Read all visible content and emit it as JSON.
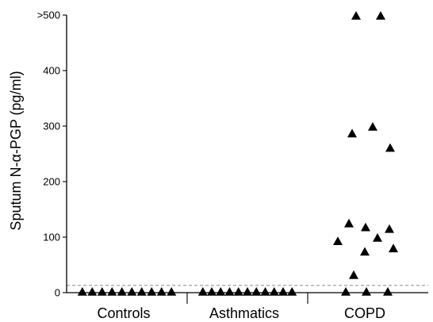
{
  "chart_data": {
    "type": "scatter",
    "title": "",
    "xlabel": "",
    "ylabel": "Sputum N-α-PGP (pg/ml)",
    "ylim": [
      0,
      500
    ],
    "yticks": [
      {
        "value": 0,
        "label": "0"
      },
      {
        "value": 100,
        "label": "100"
      },
      {
        "value": 200,
        "label": "200"
      },
      {
        "value": 300,
        "label": "300"
      },
      {
        "value": 400,
        "label": "400"
      },
      {
        "value": 500,
        "label": ">500"
      }
    ],
    "categories": [
      "Controls",
      "Asthmatics",
      "COPD"
    ],
    "threshold": 13,
    "marker": "triangle",
    "grid": false,
    "series": [
      {
        "values": [
          0,
          0,
          0,
          0,
          0,
          0,
          0,
          0,
          0,
          0
        ]
      },
      {
        "values": [
          0,
          0,
          0,
          0,
          0,
          0,
          0,
          0,
          0,
          0,
          0
        ]
      },
      {
        "values": [
          500,
          500,
          300,
          288,
          262,
          126,
          119,
          116,
          100,
          94,
          81,
          75,
          33,
          0,
          0,
          0
        ]
      }
    ]
  }
}
